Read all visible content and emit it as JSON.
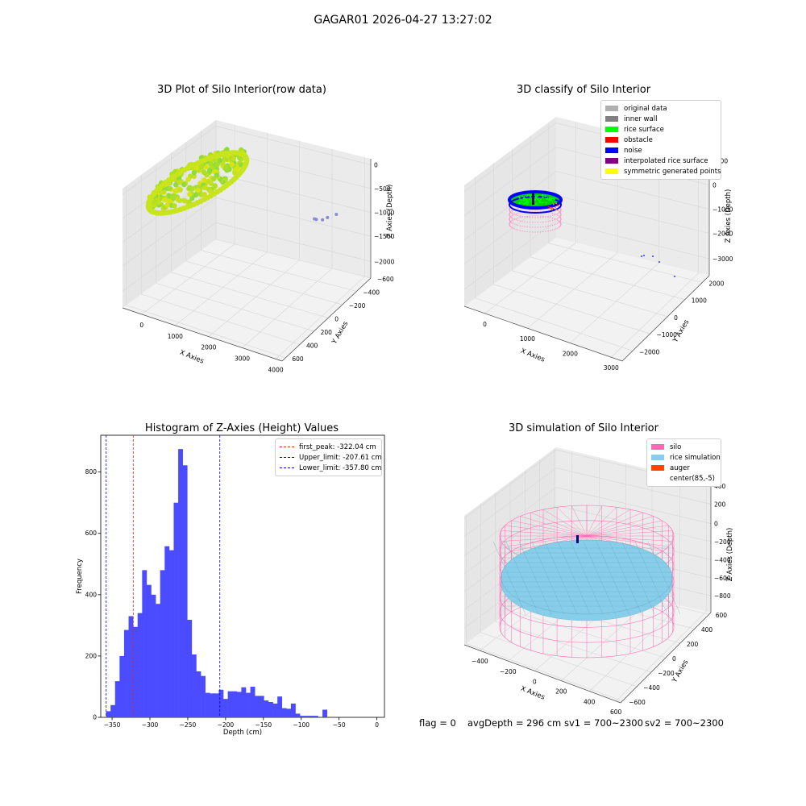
{
  "figure_title": "GAGAR01 2026-04-27 13:27:02",
  "status": {
    "flag": "flag = 0",
    "avg_depth": "avgDepth = 296 cm",
    "sv1": "sv1 = 700~2300",
    "sv2": "sv2 = 700~2300"
  },
  "colors": {
    "raw_cloud": "#a8e030",
    "hist_bar": "#4b4bff",
    "first_peak": "#d62728",
    "limits": "#0000cc",
    "silo": "#ff69b4",
    "rice_simulation": "#87ceeb",
    "auger": "#ff4500"
  },
  "chart_data": [
    {
      "type": "scatter",
      "title": "3D Plot of Silo Interior(row data)",
      "xlabel": "X Axies",
      "ylabel": "Y Axies",
      "zlabel": "Z Axies (Depth)",
      "x_ticks": [
        "0",
        "1000",
        "2000",
        "3000",
        "4000"
      ],
      "y_ticks": [
        "−600",
        "−400",
        "−200",
        "0",
        "200",
        "400",
        "600"
      ],
      "z_ticks": [
        "−2000",
        "−1500",
        "−1000",
        "−500",
        "0"
      ],
      "points": [
        {
          "x": 3650,
          "y": -50,
          "z": -1720
        },
        {
          "x": 3700,
          "y": -40,
          "z": -1750
        },
        {
          "x": 3850,
          "y": 20,
          "z": -1710
        },
        {
          "x": 3900,
          "y": 200,
          "z": -1760
        },
        {
          "x": 4000,
          "y": 500,
          "z": -1900
        }
      ]
    },
    {
      "type": "scatter",
      "title": "3D classify of Silo Interior",
      "xlabel": "X Axies",
      "ylabel": "Y Axies",
      "zlabel": "Z Axies (Depth)",
      "x_ticks": [
        "0",
        "1000",
        "2000",
        "3000"
      ],
      "y_ticks": [
        "−2000",
        "−1000",
        "0",
        "1000",
        "2000"
      ],
      "z_ticks": [
        "−3000",
        "−2000",
        "−1000",
        "0",
        "1000"
      ],
      "legend": [
        "original data",
        "inner wall",
        "rice surface",
        "obstacle",
        "noise",
        "interpolated rice surface",
        "symmetric generated points"
      ],
      "legend_colors": [
        "#b0b0b0",
        "#808080",
        "#00ff00",
        "#ff0000",
        "#0000ff",
        "#800080",
        "#ffff00"
      ],
      "legend_placement": "top-right"
    },
    {
      "type": "bar",
      "title": "Histogram of Z-Axies (Height) Values",
      "xlabel": "Depth (cm)",
      "ylabel": "Frequency",
      "x_ticks": [
        -350,
        -300,
        -250,
        -200,
        -150,
        -100,
        -50,
        0
      ],
      "y_ticks": [
        0,
        200,
        400,
        600,
        800
      ],
      "xlim": [
        -365,
        10
      ],
      "ylim": [
        0,
        920
      ],
      "bin_start": -358,
      "bin_width": 5.96,
      "values": [
        20,
        40,
        118,
        200,
        285,
        330,
        295,
        340,
        480,
        432,
        400,
        370,
        480,
        558,
        545,
        700,
        875,
        822,
        318,
        205,
        150,
        135,
        80,
        78,
        78,
        90,
        60,
        85,
        85,
        83,
        98,
        80,
        100,
        70,
        70,
        55,
        50,
        45,
        68,
        30,
        28,
        45,
        12,
        5,
        5,
        5,
        5,
        0,
        25
      ],
      "vlines": [
        {
          "name": "first_peak",
          "x": -322.04,
          "label": "first_peak: -322.04 cm"
        },
        {
          "name": "Upper_limit",
          "x": -207.61,
          "label": "Upper_limit: -207.61 cm"
        },
        {
          "name": "Lower_limit",
          "x": -357.8,
          "label": "Lower_limit: -357.80 cm"
        }
      ],
      "legend_placement": "top-right"
    },
    {
      "type": "scatter",
      "title": "3D simulation of Silo Interior",
      "xlabel": "X Axies",
      "ylabel": "Y Axies",
      "zlabel": "Z Axies (Depth)",
      "x_ticks": [
        "−400",
        "−200",
        "0",
        "200",
        "400",
        "600"
      ],
      "y_ticks": [
        "−600",
        "−400",
        "−200",
        "0",
        "200",
        "400",
        "600"
      ],
      "z_ticks": [
        "−800",
        "−600",
        "−400",
        "−200",
        "0",
        "200",
        "400"
      ],
      "legend": [
        "silo",
        "rice simulation",
        "auger",
        "center(85,-5)"
      ],
      "legend_colors": [
        "#ff69b4",
        "#87ceeb",
        "#ff4500",
        "#ffffff"
      ],
      "legend_placement": "top-right"
    }
  ]
}
